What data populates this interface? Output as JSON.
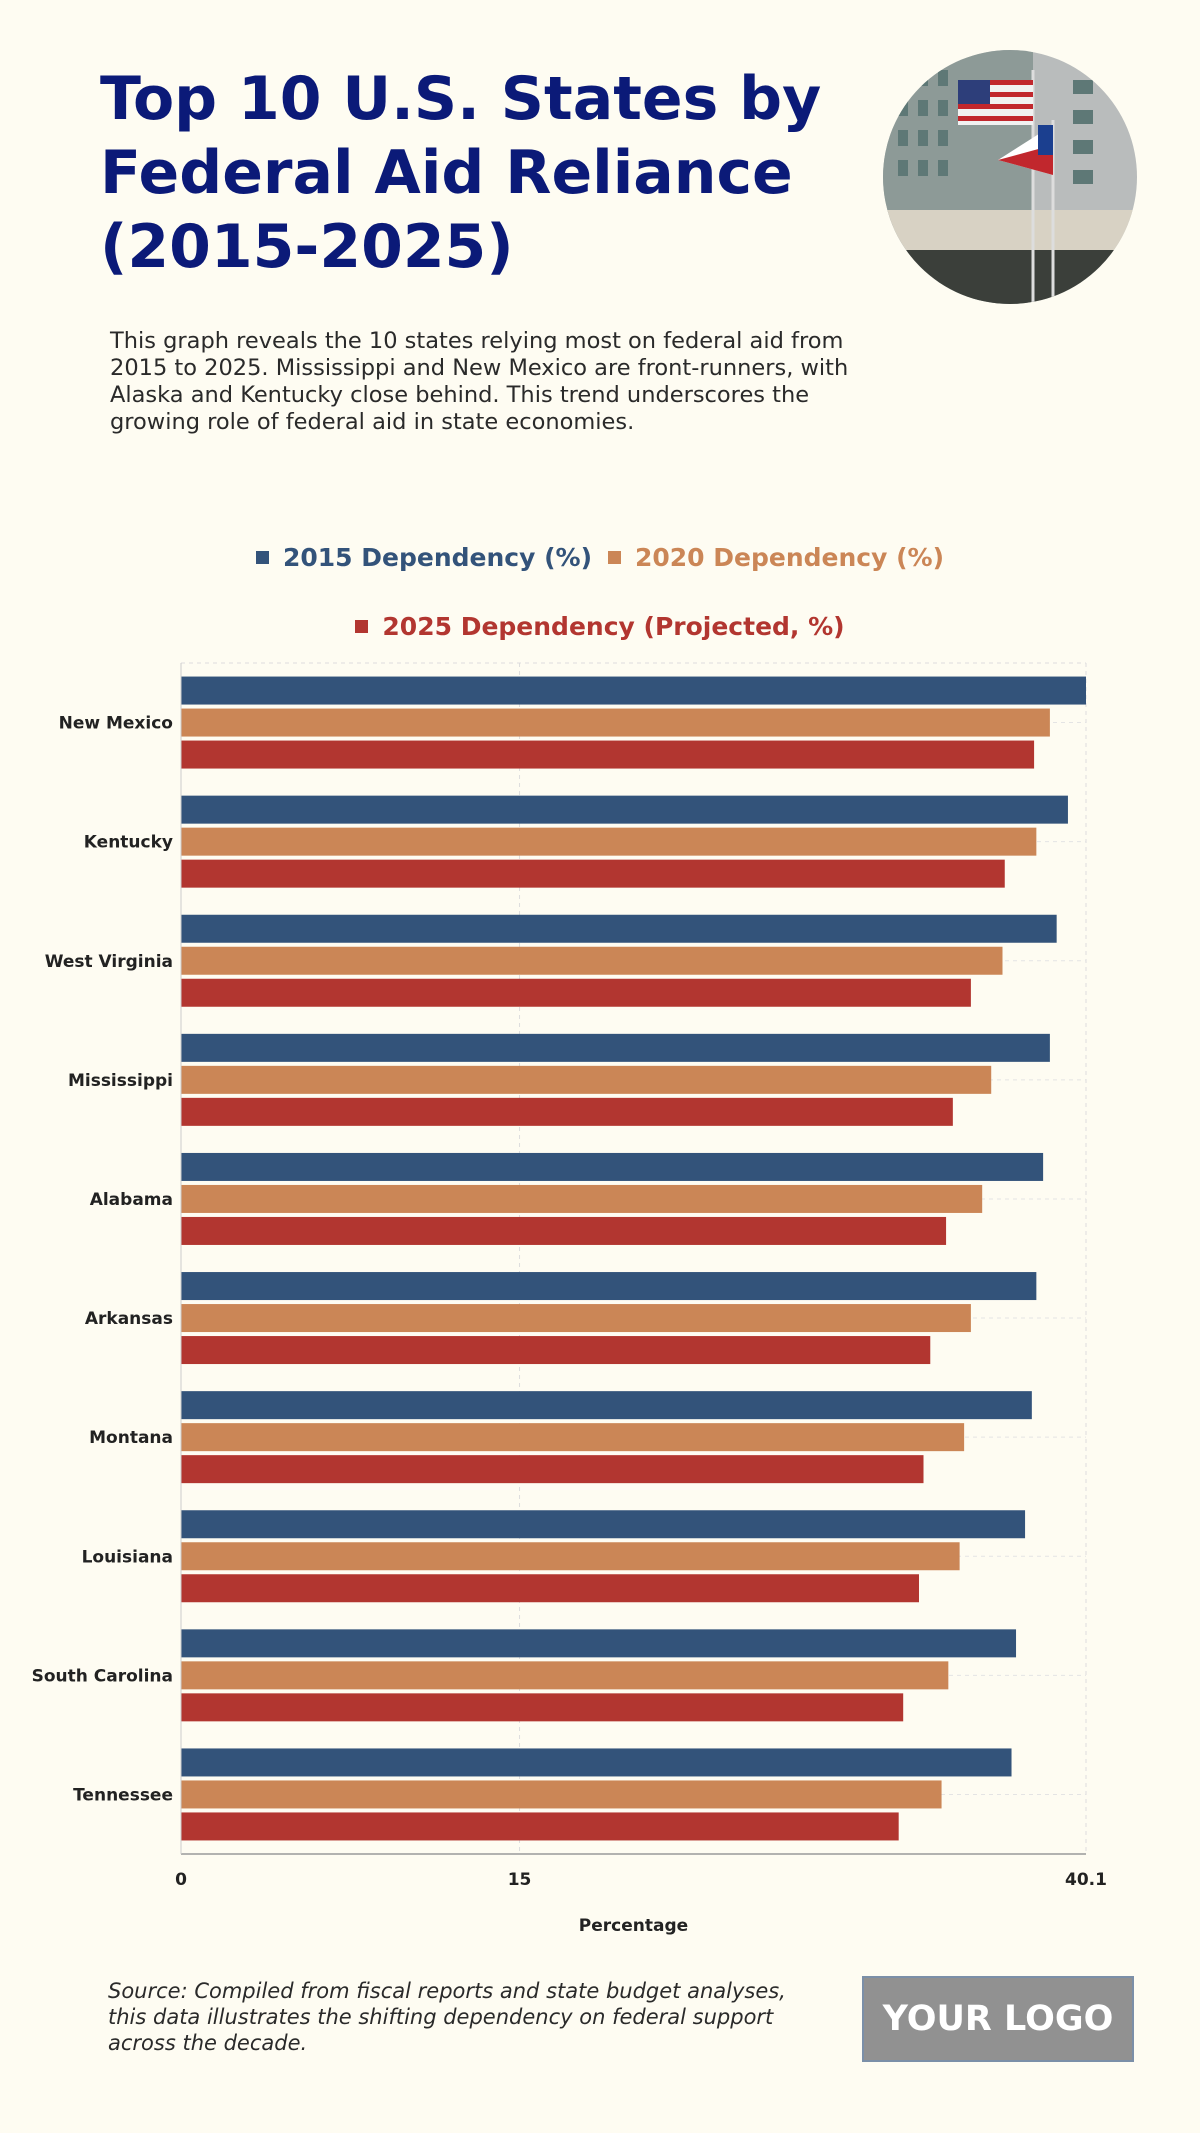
{
  "title": "Top 10 U.S. States by Federal Aid Reliance (2015-2025)",
  "description": "This graph reveals the 10 states relying most on federal aid from 2015 to 2025. Mississippi and New Mexico are front-runners, with Alaska and Kentucky close behind. This trend underscores the growing role of federal aid in state economies.",
  "source": "Source: Compiled from fiscal reports and state budget analyses, this data illustrates the shifting dependency on federal support across the decade.",
  "logo_text": "YOUR LOGO",
  "chart_data": {
    "type": "bar",
    "orientation": "horizontal",
    "categories": [
      "New Mexico",
      "Kentucky",
      "West Virginia",
      "Mississippi",
      "Alabama",
      "Arkansas",
      "Montana",
      "Louisiana",
      "South Carolina",
      "Tennessee"
    ],
    "series": [
      {
        "name": "2015 Dependency (%)",
        "color": "#33537a",
        "values": [
          40.1,
          39.3,
          38.8,
          38.5,
          38.2,
          37.9,
          37.7,
          37.4,
          37.0,
          36.8
        ]
      },
      {
        "name": "2020 Dependency (%)",
        "color": "#cb8656",
        "values": [
          38.5,
          37.9,
          36.4,
          35.9,
          35.5,
          35.0,
          34.7,
          34.5,
          34.0,
          33.7
        ]
      },
      {
        "name": "2025 Dependency (Projected, %)",
        "color": "#b23630",
        "values": [
          37.8,
          36.5,
          35.0,
          34.2,
          33.9,
          33.2,
          32.9,
          32.7,
          32.0,
          31.8
        ]
      }
    ],
    "xlabel": "Percentage",
    "ylabel": "",
    "xlim": [
      0,
      40.1
    ],
    "xticks": [
      "0",
      "15",
      "40.1"
    ],
    "grid": true,
    "legend_position": "top"
  }
}
